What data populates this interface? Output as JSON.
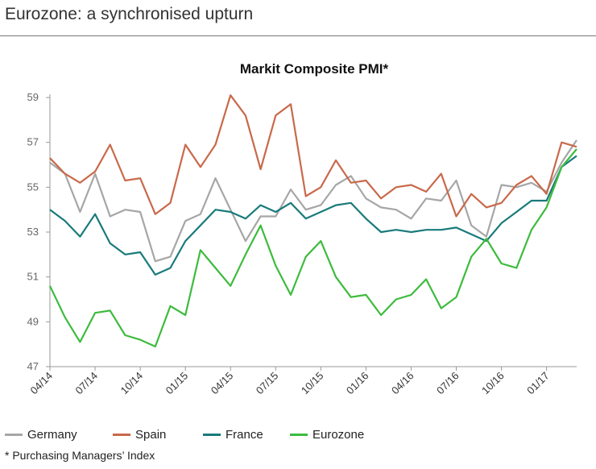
{
  "page": {
    "title": "Eurozone: a synchronised upturn",
    "footnote": "* Purchasing Managers’ Index"
  },
  "colors": {
    "Germany": "#a6a6a6",
    "Spain": "#c8694a",
    "France": "#197a7b",
    "Eurozone": "#3dbb3d"
  },
  "chart_data": {
    "type": "line",
    "title": "Markit Composite PMI*",
    "xlabel": "",
    "ylabel": "",
    "ylim": [
      47,
      59
    ],
    "yticks": [
      47,
      49,
      51,
      53,
      55,
      57,
      59
    ],
    "grid": false,
    "legend": "bottom",
    "x": [
      "04/14",
      "05/14",
      "06/14",
      "07/14",
      "08/14",
      "09/14",
      "10/14",
      "11/14",
      "12/14",
      "01/15",
      "02/15",
      "03/15",
      "04/15",
      "05/15",
      "06/15",
      "07/15",
      "08/15",
      "09/15",
      "10/15",
      "11/15",
      "12/15",
      "01/16",
      "02/16",
      "03/16",
      "04/16",
      "05/16",
      "06/16",
      "07/16",
      "08/16",
      "09/16",
      "10/16",
      "11/16",
      "12/16",
      "01/17",
      "02/17",
      "03/17"
    ],
    "xtick_labels": [
      "04/14",
      "07/14",
      "10/14",
      "01/15",
      "04/15",
      "07/15",
      "10/15",
      "01/16",
      "04/16",
      "07/16",
      "10/16",
      "01/17"
    ],
    "series": [
      {
        "name": "Germany",
        "values": [
          56.1,
          55.6,
          53.9,
          55.6,
          53.7,
          54.0,
          53.9,
          51.7,
          51.9,
          53.5,
          53.8,
          55.4,
          54.0,
          52.6,
          53.7,
          53.7,
          54.9,
          54.0,
          54.2,
          55.1,
          55.5,
          54.5,
          54.1,
          54.0,
          53.6,
          54.5,
          54.4,
          55.3,
          53.3,
          52.8,
          55.1,
          55.0,
          55.2,
          54.8,
          56.1,
          57.1
        ]
      },
      {
        "name": "Spain",
        "values": [
          56.3,
          55.6,
          55.2,
          55.7,
          56.9,
          55.3,
          55.4,
          53.8,
          54.3,
          56.9,
          55.9,
          56.9,
          59.1,
          58.2,
          55.8,
          58.2,
          58.7,
          54.6,
          55.0,
          56.2,
          55.2,
          55.3,
          54.5,
          55.0,
          55.1,
          54.8,
          55.6,
          53.7,
          54.7,
          54.1,
          54.3,
          55.1,
          55.5,
          54.7,
          57.0,
          56.8
        ]
      },
      {
        "name": "France",
        "values": [
          54.0,
          53.5,
          52.8,
          53.8,
          52.5,
          52.0,
          52.1,
          51.1,
          51.4,
          52.6,
          53.3,
          54.0,
          53.9,
          53.6,
          54.2,
          53.9,
          54.3,
          53.6,
          53.9,
          54.2,
          54.3,
          53.6,
          53.0,
          53.1,
          53.0,
          53.1,
          53.1,
          53.2,
          52.9,
          52.6,
          53.4,
          53.9,
          54.4,
          54.4,
          55.9,
          56.4
        ]
      },
      {
        "name": "Eurozone",
        "values": [
          50.6,
          49.2,
          48.1,
          49.4,
          49.5,
          48.4,
          48.2,
          47.9,
          49.7,
          49.3,
          52.2,
          51.4,
          50.6,
          52.0,
          53.3,
          51.5,
          50.2,
          51.9,
          52.6,
          51.0,
          50.1,
          50.2,
          49.3,
          50.0,
          50.2,
          50.9,
          49.6,
          50.1,
          51.9,
          52.7,
          51.6,
          51.4,
          53.1,
          54.1,
          55.9,
          56.7
        ]
      }
    ]
  }
}
